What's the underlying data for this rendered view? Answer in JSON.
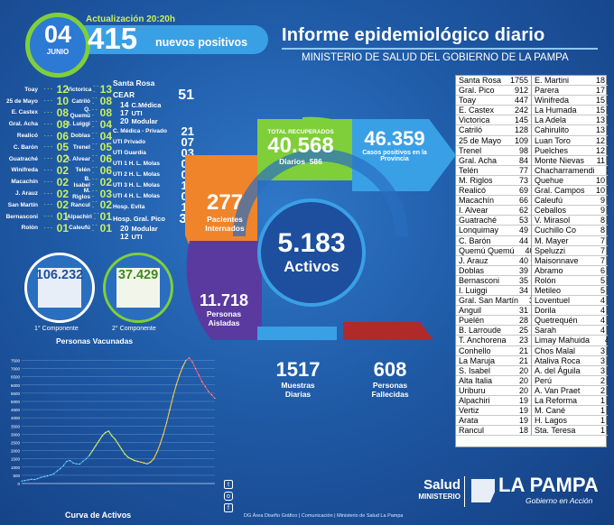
{
  "header": {
    "update_label": "Actualización 20:20h",
    "date_day": "04",
    "date_month": "JUNIO",
    "new_positives": "415",
    "new_positives_label": "nuevos positivos",
    "title": "Informe epidemiológico diario",
    "subtitle": "MINISTERIO DE SALUD DEL GOBIERNO DE LA PAMPA"
  },
  "localities_left": [
    {
      "name": "Toay",
      "value": "12"
    },
    {
      "name": "25 de Mayo",
      "value": "10"
    },
    {
      "name": "E. Castex",
      "value": "08"
    },
    {
      "name": "Gral. Acha",
      "value": "08"
    },
    {
      "name": "Realicó",
      "value": "06"
    },
    {
      "name": "C. Barón",
      "value": "05"
    },
    {
      "name": "Guatraché",
      "value": "02"
    },
    {
      "name": "Winifreda",
      "value": "02"
    },
    {
      "name": "Macachín",
      "value": "02"
    },
    {
      "name": "J. Arauz",
      "value": "02"
    },
    {
      "name": "San Martín",
      "value": "02"
    },
    {
      "name": "Bernasconi",
      "value": "01"
    },
    {
      "name": "Rolón",
      "value": "01"
    }
  ],
  "localities_mid": [
    {
      "name": "Victorica",
      "value": "13"
    },
    {
      "name": "Catriló",
      "value": "08"
    },
    {
      "name": "Q. Quemú",
      "value": "08"
    },
    {
      "name": "I. Luiggi",
      "value": "04"
    },
    {
      "name": "Doblas",
      "value": "04"
    },
    {
      "name": "Trenel",
      "value": "05"
    },
    {
      "name": "I. Alvear",
      "value": "06"
    },
    {
      "name": "Telén",
      "value": "06"
    },
    {
      "name": "B. Isabel",
      "value": "02"
    },
    {
      "name": "M. Riglos",
      "value": "03"
    },
    {
      "name": "Rancul",
      "value": "02"
    },
    {
      "name": "Alpachiri",
      "value": "01"
    },
    {
      "name": "Caleufú",
      "value": "01"
    }
  ],
  "hospitals": {
    "santa_rosa": "Santa Rosa",
    "cear": "CEAR",
    "cear_value": "51",
    "sr_items": [
      {
        "value": "14",
        "label": "C.Médica"
      },
      {
        "value": "17",
        "label": "UTI"
      },
      {
        "value": "20",
        "label": "Modular"
      }
    ],
    "others": [
      {
        "label": "C. Médica - Privado",
        "value": "21"
      },
      {
        "label": "UTI Privado",
        "value": "07"
      },
      {
        "label": "UTI Guardia",
        "value": "03"
      },
      {
        "label": "UTI 1 H. L. Molas",
        "value": "05"
      },
      {
        "label": "UTI 2 H. L. Molas",
        "value": "06"
      },
      {
        "label": "UTI 3 H. L. Molas",
        "value": "12"
      },
      {
        "label": "UTI 4 H. L. Molas",
        "value": "04"
      },
      {
        "label": "Hosp. Evita",
        "value": "14"
      }
    ],
    "pico_label": "Hosp. Gral. Pico",
    "pico_value": "32",
    "pico_items": [
      {
        "value": "20",
        "label": "Modular"
      },
      {
        "value": "12",
        "label": "UTI"
      }
    ]
  },
  "vaccines": {
    "first_value": "106.232",
    "first_label": "1° Componente",
    "second_value": "37.429",
    "second_label": "2° Componente",
    "title": "Personas Vacunadas"
  },
  "ring": {
    "recovered_label": "TOTAL RECUPERADOS",
    "recovered_value": "40.568",
    "diarios_label": "Diarios",
    "diarios_value": "586",
    "positives_value": "46.359",
    "positives_label": "Casos positivos en la Provincia",
    "internados_value": "277",
    "internados_label": "Pacientes Internados",
    "aisladas_value": "11.718",
    "aisladas_label": "Personas Aisladas",
    "muestras_value": "1517",
    "muestras_label": "Muestras Diarias",
    "fallecidas_value": "608",
    "fallecidas_label": "Personas Fallecidas",
    "activos_value": "5.183",
    "activos_label": "Activos"
  },
  "table_left": [
    {
      "name": "Santa Rosa",
      "value": "1755"
    },
    {
      "name": "Gral. Pico",
      "value": "912"
    },
    {
      "name": "Toay",
      "value": "447"
    },
    {
      "name": "E. Castex",
      "value": "242"
    },
    {
      "name": "Victorica",
      "value": "145"
    },
    {
      "name": "Catriló",
      "value": "128"
    },
    {
      "name": "25 de Mayo",
      "value": "109"
    },
    {
      "name": "Trenel",
      "value": "98"
    },
    {
      "name": "Gral. Acha",
      "value": "84"
    },
    {
      "name": "Telén",
      "value": "77"
    },
    {
      "name": "M. Riglos",
      "value": "73"
    },
    {
      "name": "Realicó",
      "value": "69"
    },
    {
      "name": "Macachín",
      "value": "66"
    },
    {
      "name": "I. Alvear",
      "value": "62"
    },
    {
      "name": "Guatraché",
      "value": "53"
    },
    {
      "name": "Lonquimay",
      "value": "49"
    },
    {
      "name": "C. Barón",
      "value": "44"
    },
    {
      "name": "Quemú Quemú",
      "value": "40"
    },
    {
      "name": "J. Arauz",
      "value": "40"
    },
    {
      "name": "Doblas",
      "value": "39"
    },
    {
      "name": "Bernasconi",
      "value": "35"
    },
    {
      "name": "I. Luiggi",
      "value": "34"
    },
    {
      "name": "Gral. San Martín",
      "value": "33"
    },
    {
      "name": "Anguil",
      "value": "31"
    },
    {
      "name": "Puelén",
      "value": "28"
    },
    {
      "name": "B. Larroude",
      "value": "25"
    },
    {
      "name": "T. Anchorena",
      "value": "23"
    },
    {
      "name": "Conhello",
      "value": "21"
    },
    {
      "name": "La Maruja",
      "value": "21"
    },
    {
      "name": "S. Isabel",
      "value": "20"
    },
    {
      "name": "Alta Italia",
      "value": "20"
    },
    {
      "name": "Uriburu",
      "value": "20"
    },
    {
      "name": "Alpachiri",
      "value": "19"
    },
    {
      "name": "Vertiz",
      "value": "19"
    },
    {
      "name": "Arata",
      "value": "19"
    },
    {
      "name": "Rancul",
      "value": "18"
    }
  ],
  "table_right": [
    {
      "name": "E. Martini",
      "value": "18"
    },
    {
      "name": "Parera",
      "value": "17"
    },
    {
      "name": "Winifreda",
      "value": "15"
    },
    {
      "name": "La Humada",
      "value": "15"
    },
    {
      "name": "La Adela",
      "value": "13"
    },
    {
      "name": "Cahirulito",
      "value": "13"
    },
    {
      "name": "Luan Toro",
      "value": "12"
    },
    {
      "name": "Puelches",
      "value": "12"
    },
    {
      "name": "Monte Nievas",
      "value": "11"
    },
    {
      "name": "Chacharramendi",
      "value": "11"
    },
    {
      "name": "Quehue",
      "value": "10"
    },
    {
      "name": "Gral. Campos",
      "value": "10"
    },
    {
      "name": "Caleufú",
      "value": "9"
    },
    {
      "name": "Ceballos",
      "value": "9"
    },
    {
      "name": "V. Mirasol",
      "value": "8"
    },
    {
      "name": "Cuchillo Co",
      "value": "8"
    },
    {
      "name": "M. Mayer",
      "value": "7"
    },
    {
      "name": "Speluzzi",
      "value": "7"
    },
    {
      "name": "Maisonnave",
      "value": "7"
    },
    {
      "name": "Abramo",
      "value": "6"
    },
    {
      "name": "Rolón",
      "value": "5"
    },
    {
      "name": "Metileo",
      "value": "5"
    },
    {
      "name": "Loventuel",
      "value": "4"
    },
    {
      "name": "Dorila",
      "value": "4"
    },
    {
      "name": "Quetrequén",
      "value": "4"
    },
    {
      "name": "Sarah",
      "value": "4"
    },
    {
      "name": "Limay Mahuida",
      "value": "4"
    },
    {
      "name": "Chos Malal",
      "value": "3"
    },
    {
      "name": "Ataliva Roca",
      "value": "3"
    },
    {
      "name": "A. del Águila",
      "value": "3"
    },
    {
      "name": "Perú",
      "value": "2"
    },
    {
      "name": "A. Van Praet",
      "value": "2"
    },
    {
      "name": "La Reforma",
      "value": "1"
    },
    {
      "name": "M. Cané",
      "value": "1"
    },
    {
      "name": "H. Lagos",
      "value": "1"
    },
    {
      "name": "Sta. Teresa",
      "value": "1"
    }
  ],
  "chart_data": {
    "type": "line",
    "title": "Curva de Activos",
    "yticks": [
      "7500",
      "7000",
      "6500",
      "6000",
      "5500",
      "5000",
      "4500",
      "4000",
      "3500",
      "3000",
      "2500",
      "2000",
      "1500",
      "1000",
      "500",
      "0"
    ],
    "ylim": [
      0,
      7800
    ],
    "values": [
      150,
      180,
      220,
      260,
      240,
      300,
      380,
      420,
      460,
      520,
      600,
      760,
      900,
      1100,
      1350,
      1400,
      1250,
      1200,
      1180,
      1350,
      1500,
      1700,
      2000,
      2300,
      2600,
      2900,
      3100,
      3200,
      2900,
      2700,
      2400,
      2100,
      1800,
      1600,
      1500,
      1400,
      1350,
      1300,
      1250,
      1200,
      1300,
      1500,
      1900,
      2400,
      3000,
      3700,
      4500,
      5300,
      6000,
      6600,
      7100,
      7500,
      7650,
      7400,
      7000,
      6600,
      6200,
      5900,
      5600,
      5400,
      5183
    ]
  },
  "footer": {
    "credits": "DG Área Diseño Gráfico | Comunicación | Ministerio de Salud La Pampa",
    "salud": "Salud",
    "ministerio": "MINISTERIO",
    "la_pampa": "LA PAMPA",
    "gobierno": "Gobierno en Acción"
  }
}
